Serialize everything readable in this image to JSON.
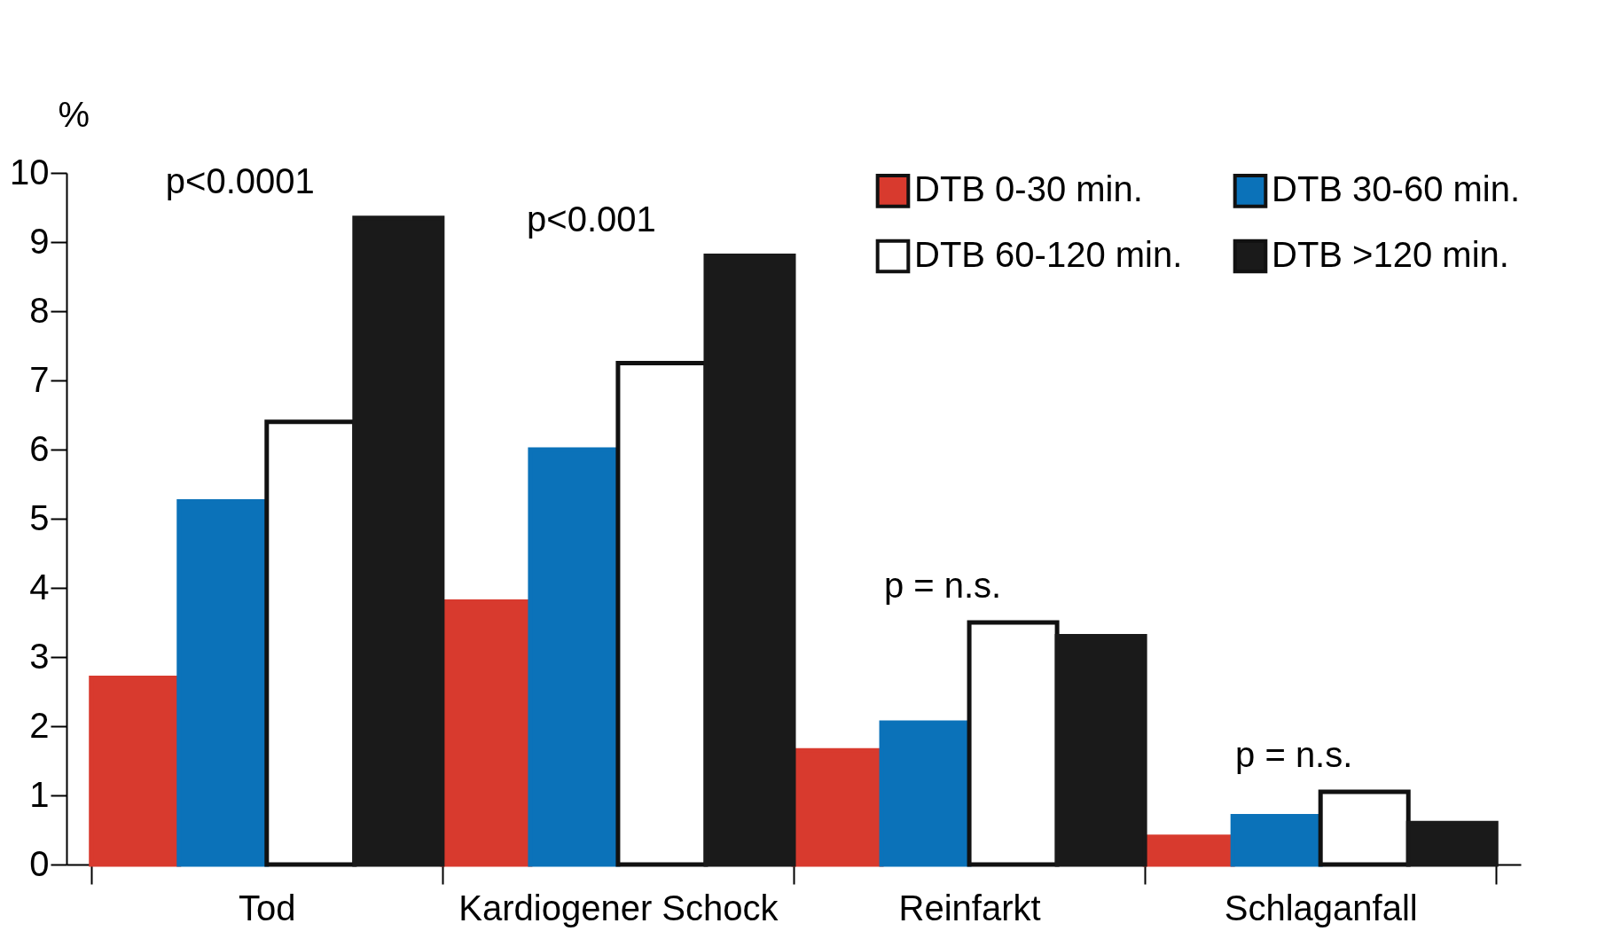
{
  "chart_data": {
    "type": "bar",
    "ylabel": "%",
    "categories": [
      "Tod",
      "Kardiogener Schock",
      "Reinfarkt",
      "Schlaganfall"
    ],
    "series": [
      {
        "name": "DTB 0-30 min.",
        "color": "#d83a2e",
        "values": [
          2.7,
          3.8,
          1.65,
          0.4
        ]
      },
      {
        "name": "DTB 30-60 min.",
        "color": "#0b72b9",
        "values": [
          5.25,
          6.0,
          2.05,
          0.7
        ]
      },
      {
        "name": "DTB 60-120 min.",
        "color": "#ffffff",
        "values": [
          6.4,
          7.25,
          3.5,
          1.05
        ]
      },
      {
        "name": "DTB >120 min.",
        "color": "#1a1a1a",
        "values": [
          9.35,
          8.8,
          3.3,
          0.6
        ]
      }
    ],
    "ylim": [
      0,
      10
    ],
    "yticks": [
      0,
      1,
      2,
      3,
      4,
      5,
      6,
      7,
      8,
      9,
      10
    ],
    "grid": false,
    "legend": "top right",
    "annotations": [
      "p<0.0001",
      "p<0.001",
      "p = n.s.",
      "p = n.s."
    ]
  }
}
